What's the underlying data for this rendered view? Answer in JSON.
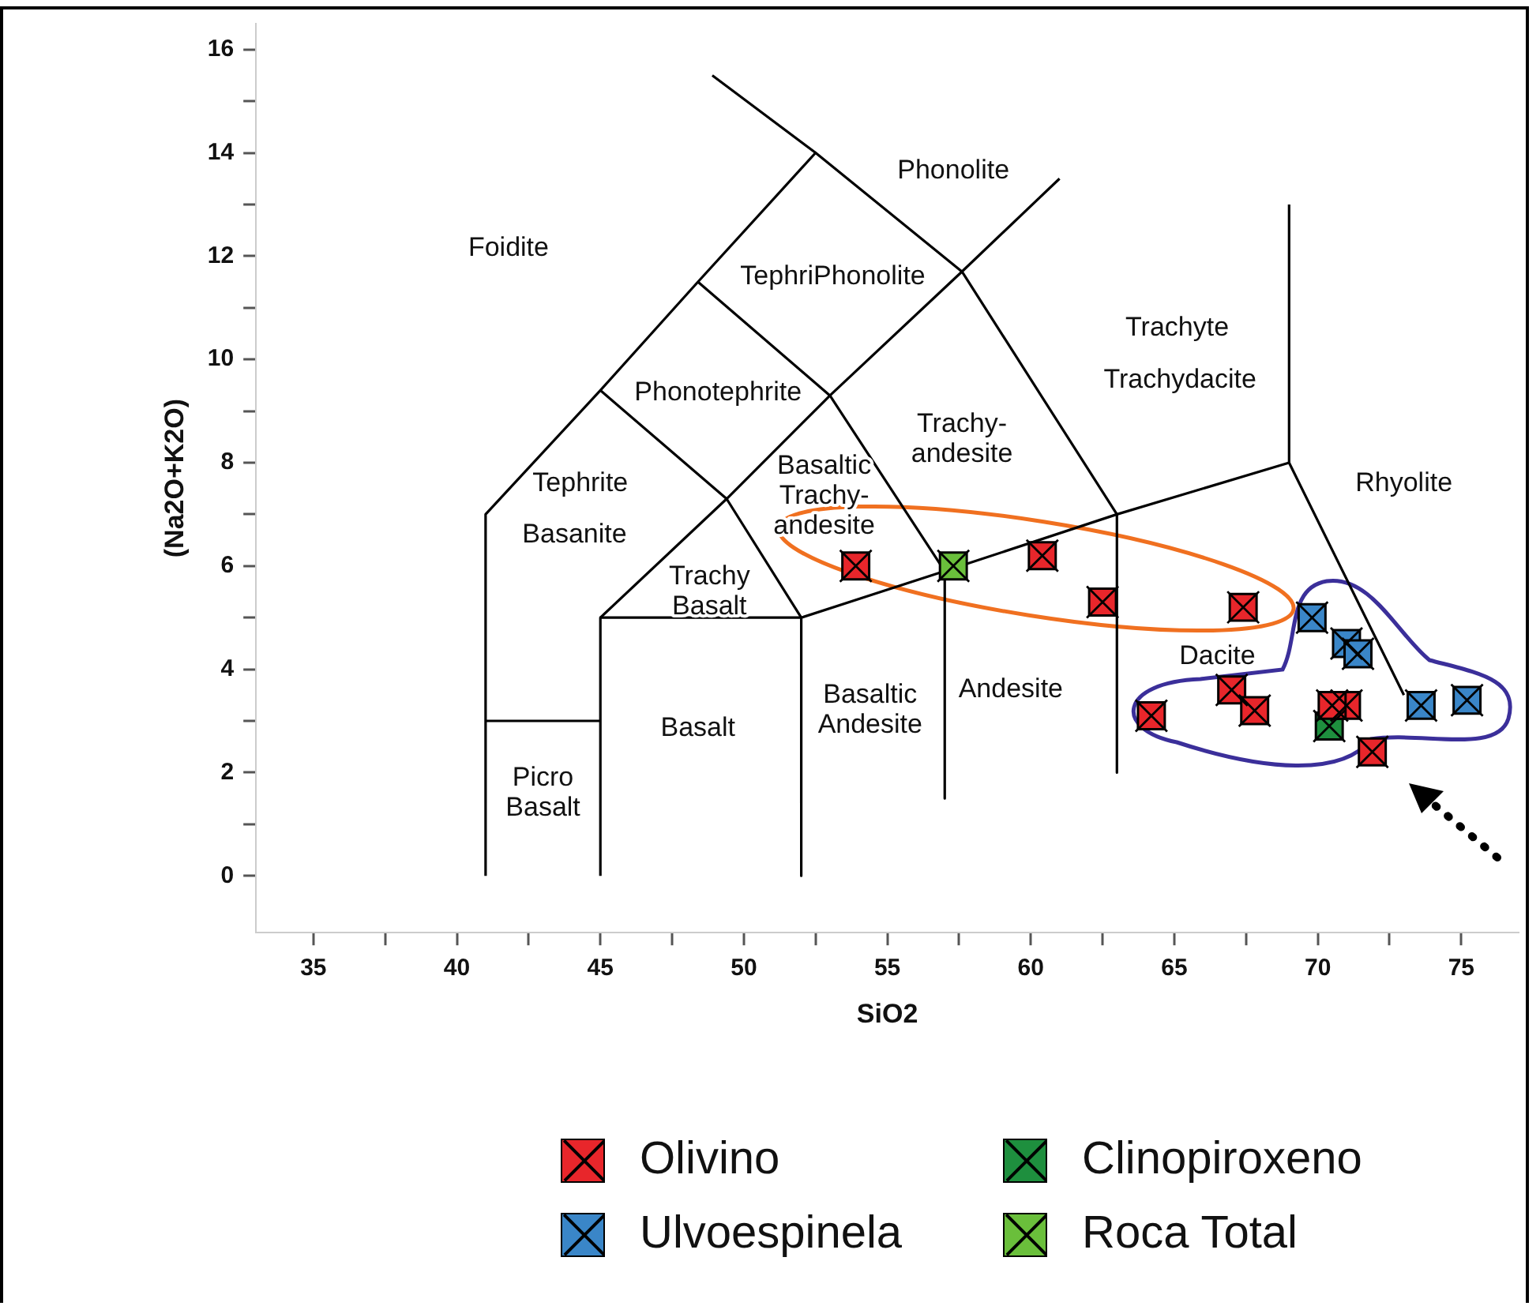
{
  "chart_data": {
    "type": "scatter",
    "xlabel": "SiO2",
    "ylabel": "(Na2O+K2O)",
    "xlim": [
      33,
      77
    ],
    "ylim": [
      -1.1,
      16.5
    ],
    "xticks": [
      35,
      {
        "value": 37.5,
        "label": null
      },
      40,
      {
        "value": 42.5,
        "label": null
      },
      45,
      {
        "value": 47.5,
        "label": null
      },
      50,
      {
        "value": 52.5,
        "label": null
      },
      55,
      {
        "value": 57.5,
        "label": null
      },
      60,
      {
        "value": 62.5,
        "label": null
      },
      65,
      {
        "value": 67.5,
        "label": null
      },
      70,
      {
        "value": 72.5,
        "label": null
      },
      75
    ],
    "yticks": [
      0,
      {
        "value": 1,
        "label": null
      },
      2,
      {
        "value": 3,
        "label": null
      },
      4,
      {
        "value": 5,
        "label": null
      },
      6,
      {
        "value": 7,
        "label": null
      },
      8,
      {
        "value": 9,
        "label": null
      },
      10,
      {
        "value": 11,
        "label": null
      },
      12,
      {
        "value": 13,
        "label": null
      },
      14,
      {
        "value": 15,
        "label": null
      },
      16
    ],
    "grid": false,
    "legend": "bottom",
    "marker": "square",
    "series": [
      {
        "name": "Olivino",
        "type": "scatter",
        "color": "#e8262b",
        "x": [
          53.9,
          60.4,
          62.5,
          67.4,
          64.2,
          67.0,
          67.8,
          71.0,
          70.5,
          71.9
        ],
        "values": [
          6.0,
          6.2,
          5.3,
          5.2,
          3.1,
          3.6,
          3.2,
          3.3,
          3.3,
          2.4
        ]
      },
      {
        "name": "Clinopiroxeno",
        "type": "scatter",
        "color": "#1e8f3e",
        "x": [
          70.4
        ],
        "values": [
          2.9
        ]
      },
      {
        "name": "Ulvoespinela",
        "type": "scatter",
        "color": "#3a86c8",
        "x": [
          69.8,
          71.0,
          71.4,
          73.6,
          75.2
        ],
        "values": [
          5.0,
          4.5,
          4.3,
          3.3,
          3.4
        ]
      },
      {
        "name": "Roca Total",
        "type": "scatter",
        "color": "#6abf3b",
        "x": [
          57.3
        ],
        "values": [
          6.0
        ]
      },
      {
        "type": "line",
        "color": "#000000",
        "marker": "none",
        "x": [
          41,
          41,
          45,
          48.4,
          52.5,
          57.6,
          63,
          63
        ],
        "values": [
          0,
          7,
          9.4,
          11.5,
          14,
          11.7,
          7,
          2
        ]
      },
      {
        "type": "line",
        "color": "#000000",
        "marker": "none",
        "x": [
          48.9,
          52.5
        ],
        "values": [
          15.5,
          14
        ]
      },
      {
        "type": "line",
        "color": "#000000",
        "marker": "none",
        "x": [
          41,
          45
        ],
        "values": [
          3,
          3
        ]
      },
      {
        "type": "line",
        "color": "#000000",
        "marker": "none",
        "x": [
          45,
          45,
          52,
          52
        ],
        "values": [
          0,
          5,
          5,
          0
        ]
      },
      {
        "type": "line",
        "color": "#000000",
        "marker": "none",
        "x": [
          45,
          49.4,
          53,
          57.6,
          61
        ],
        "values": [
          5,
          7.3,
          9.3,
          11.7,
          13.5
        ]
      },
      {
        "type": "line",
        "color": "#000000",
        "marker": "none",
        "x": [
          45,
          49.4,
          52,
          57,
          63,
          69,
          73
        ],
        "values": [
          9.4,
          7.3,
          5,
          5.9,
          7,
          8,
          3.5
        ]
      },
      {
        "type": "line",
        "color": "#000000",
        "marker": "none",
        "x": [
          48.4,
          53,
          57,
          57
        ],
        "values": [
          11.5,
          9.3,
          5.9,
          1.5
        ]
      },
      {
        "type": "line",
        "color": "#000000",
        "marker": "none",
        "x": [
          69,
          69
        ],
        "values": [
          8,
          13
        ]
      }
    ],
    "annotations": [
      "Foidite",
      "Phonolite",
      "TephriPhonolite",
      "Phonotephrite",
      "Tephrite",
      "Basanite",
      "Trachy\nBasalt",
      "Basaltic\nTrachy-\nandesite",
      "Trachy-\nandesite",
      "Trachyte",
      "Trachydacite",
      "Rhyolite",
      "Dacite",
      "Andesite",
      "Basaltic\nAndesite",
      "Basalt",
      "Picro\nBasalt"
    ]
  }
}
